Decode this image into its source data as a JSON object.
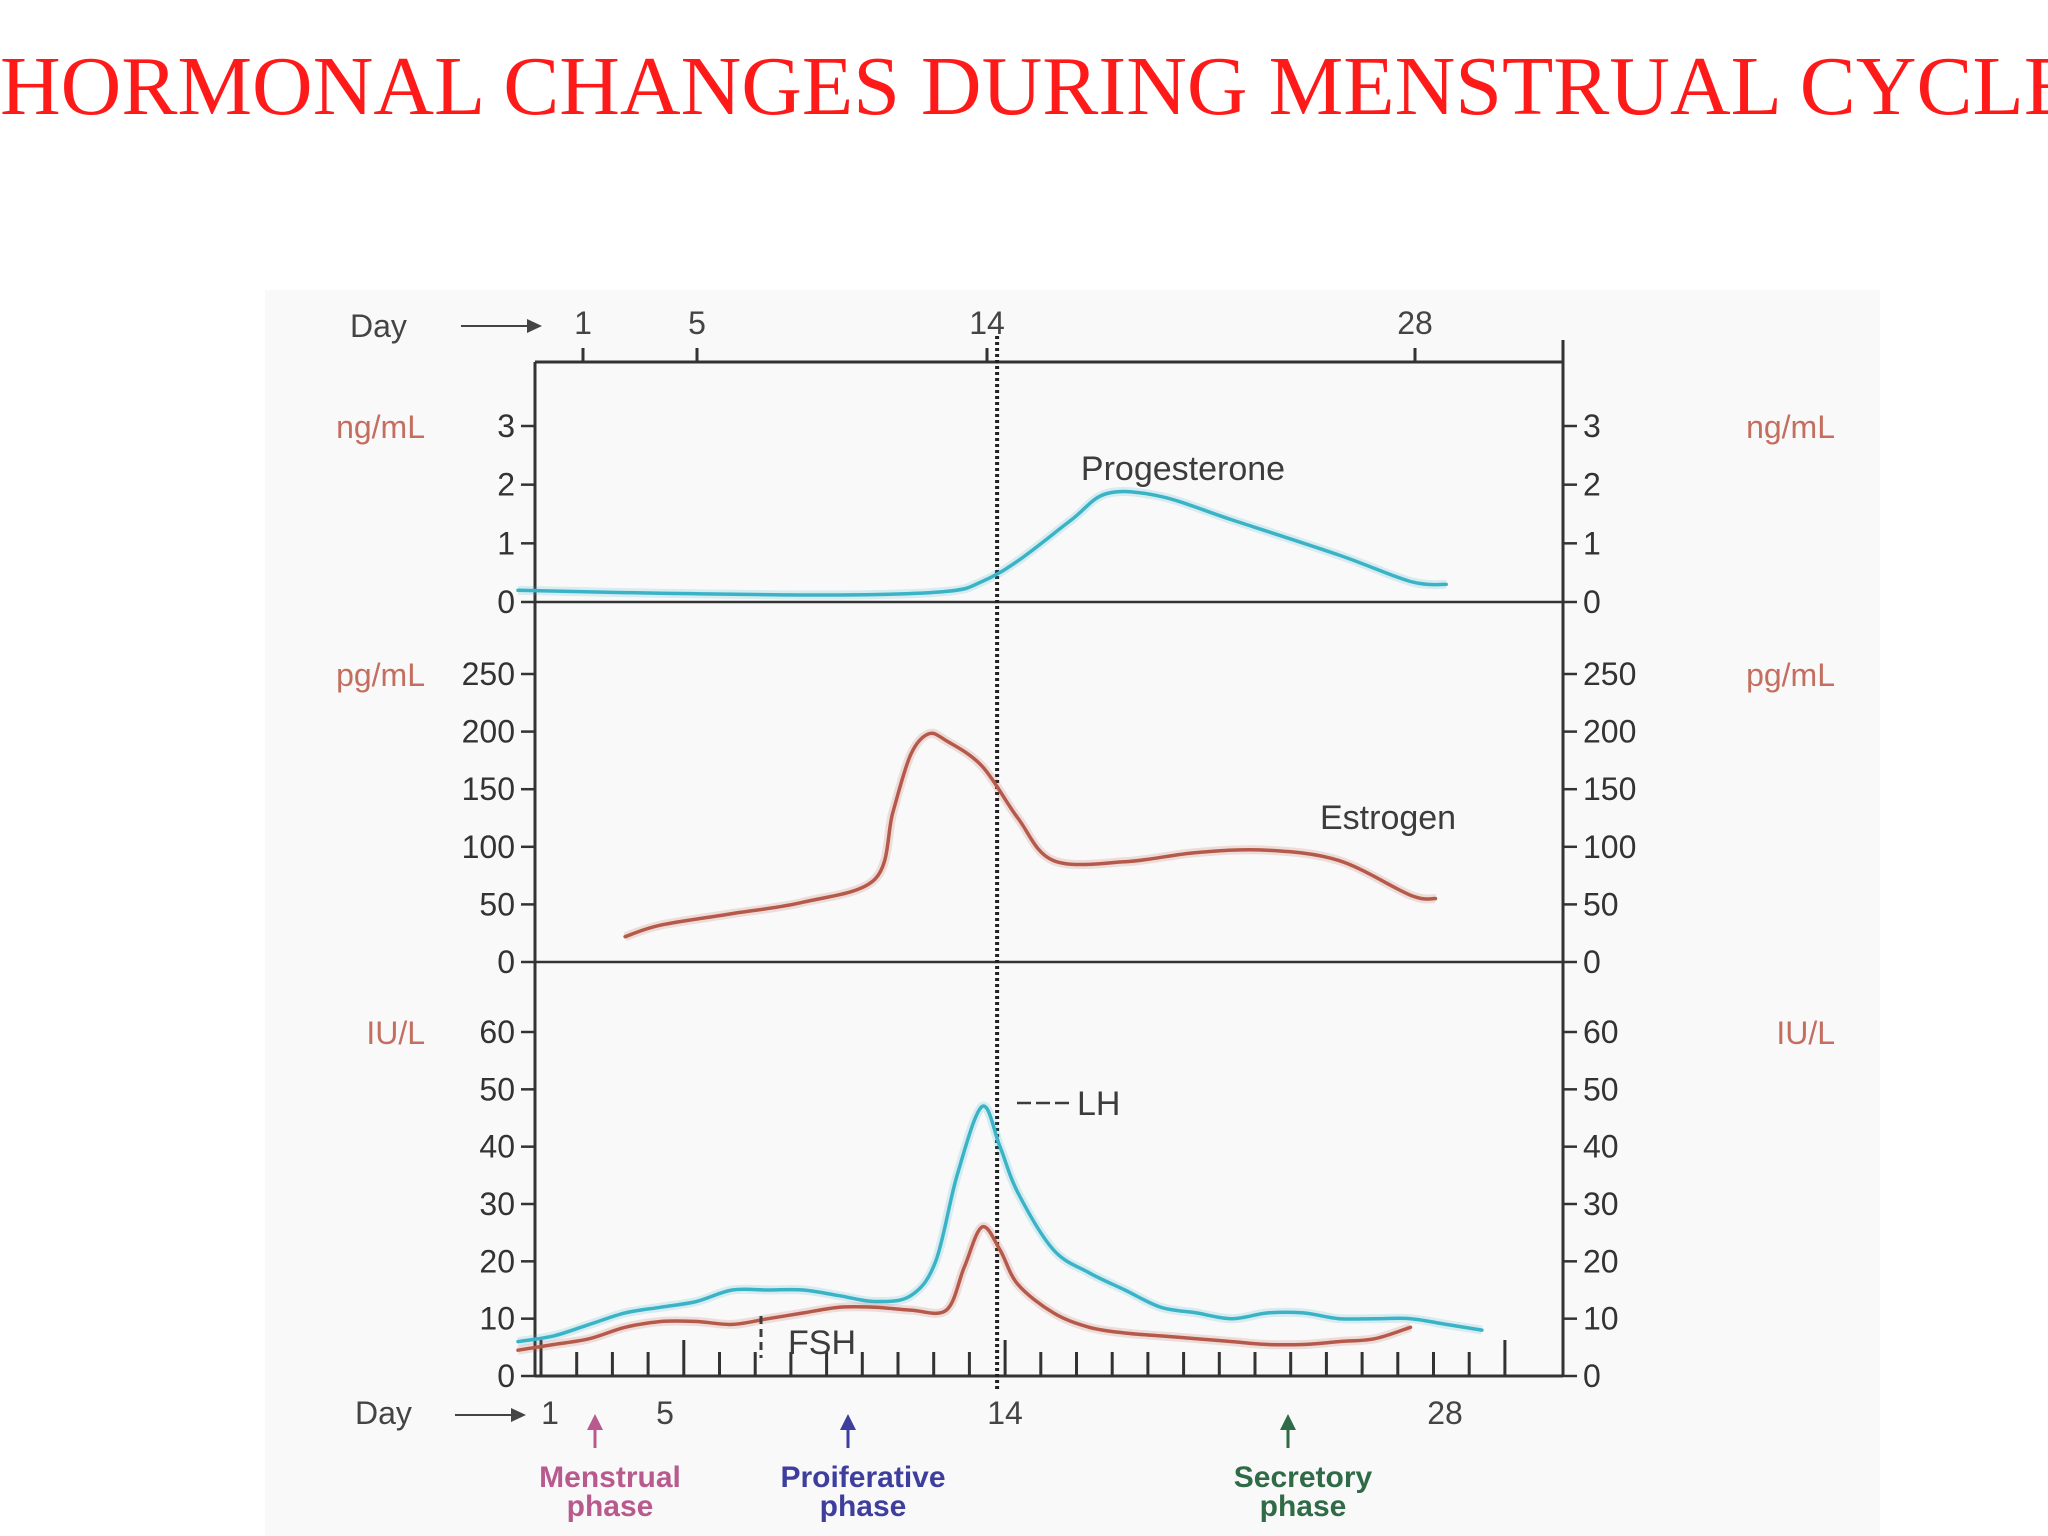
{
  "title": "HORMONAL CHANGES DURING MENSTRUAL CYCLE",
  "colors": {
    "title": "#ff1a1a",
    "unit_label": "#c46e60",
    "blue_curve": "#3bb3c6",
    "red_curve": "#b55a4a",
    "menstrual": "#b85a8e",
    "proliferative": "#3e3e9e",
    "secretory": "#2f6b46",
    "axis": "#333333"
  },
  "chart_data": [
    {
      "type": "line",
      "panel": "progesterone",
      "unit": "ng/mL",
      "ylim": [
        0,
        3
      ],
      "yticks": [
        0,
        1,
        2,
        3
      ],
      "xlim": [
        1,
        28
      ],
      "series": [
        {
          "name": "Progesterone",
          "color": "#3bb3c6",
          "x": [
            1,
            5,
            10,
            13,
            14,
            15,
            16.5,
            17.5,
            19,
            21,
            24,
            26,
            27
          ],
          "y": [
            0.2,
            0.15,
            0.12,
            0.18,
            0.35,
            0.7,
            1.4,
            1.85,
            1.8,
            1.4,
            0.8,
            0.35,
            0.3
          ]
        }
      ]
    },
    {
      "type": "line",
      "panel": "estrogen",
      "unit": "pg/mL",
      "ylim": [
        0,
        250
      ],
      "yticks": [
        0,
        50,
        100,
        150,
        200,
        250
      ],
      "xlim": [
        1,
        28
      ],
      "series": [
        {
          "name": "Estrogen",
          "color": "#b55a4a",
          "x": [
            4,
            5,
            7,
            9,
            11,
            11.5,
            12,
            12.5,
            13,
            14,
            15,
            16,
            18,
            20,
            22,
            24,
            26,
            26.7
          ],
          "y": [
            22,
            32,
            42,
            52,
            72,
            130,
            180,
            198,
            192,
            170,
            125,
            88,
            87,
            95,
            97,
            88,
            58,
            55
          ]
        }
      ]
    },
    {
      "type": "line",
      "panel": "gonadotropins",
      "unit": "IU/L",
      "ylim": [
        0,
        60
      ],
      "yticks": [
        0,
        10,
        20,
        30,
        40,
        50,
        60
      ],
      "xlim": [
        1,
        28
      ],
      "series": [
        {
          "name": "LH",
          "color": "#3bb3c6",
          "x": [
            1,
            2,
            3,
            4,
            5,
            6,
            7,
            8,
            9,
            10,
            11,
            12,
            12.7,
            13.3,
            14,
            14.5,
            15,
            16,
            17,
            18,
            19,
            20,
            21,
            22,
            23,
            24,
            25,
            26,
            27,
            28
          ],
          "y": [
            6,
            7,
            9,
            11,
            12,
            13,
            15,
            15,
            15,
            14,
            13,
            14,
            20,
            35,
            47,
            40,
            32,
            22,
            18,
            15,
            12,
            11,
            10,
            11,
            11,
            10,
            10,
            10,
            9,
            8
          ]
        },
        {
          "name": "FSH",
          "color": "#b55a4a",
          "x": [
            1,
            2,
            3,
            4,
            5,
            6,
            7,
            8,
            9,
            10,
            11,
            12,
            13,
            13.5,
            14,
            14.5,
            15,
            16,
            17,
            18,
            19,
            20,
            21,
            22,
            23,
            24,
            25,
            26
          ],
          "y": [
            4.5,
            5.5,
            6.5,
            8.5,
            9.5,
            9.5,
            9,
            10,
            11,
            12,
            12,
            11.5,
            11.5,
            19,
            26,
            22,
            16,
            11,
            8.5,
            7.5,
            7,
            6.5,
            6,
            5.5,
            5.5,
            6,
            6.5,
            8.5
          ]
        }
      ]
    }
  ],
  "axes": {
    "day_label": "Day",
    "top_day_ticks": [
      1,
      5,
      14,
      28
    ],
    "bottom_day_ticks": [
      1,
      5,
      14,
      28
    ],
    "ovulation_day": 14
  },
  "annotations": {
    "progesterone": "Progesterone",
    "estrogen": "Estrogen",
    "lh": "LH",
    "fsh": "FSH"
  },
  "phases": [
    {
      "line1": "Menstrual",
      "line2": "phase",
      "color": "#b85a8e",
      "day": 3
    },
    {
      "line1": "Proiferative",
      "line2": "phase",
      "color": "#3e3e9e",
      "day": 10
    },
    {
      "line1": "Secretory",
      "line2": "phase",
      "color": "#2f6b46",
      "day": 23
    }
  ]
}
